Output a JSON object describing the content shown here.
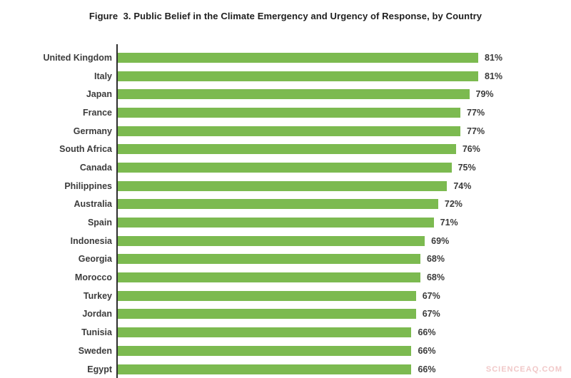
{
  "title": "Figure  3. Public Belief in the Climate Emergency and Urgency of Response, by Country",
  "watermark": "SCIENCEAQ.COM",
  "colors": {
    "bar": "#7cba50",
    "axis": "#2e2e2e",
    "title_text": "#1e1e1e",
    "label_text": "#3c3c3c",
    "watermark_text": "#f1c8c8"
  },
  "chart_data": {
    "type": "bar",
    "orientation": "horizontal",
    "title": "Figure  3. Public Belief in the Climate Emergency and Urgency of Response, by Country",
    "categories": [
      "United Kingdom",
      "Italy",
      "Japan",
      "France",
      "Germany",
      "South Africa",
      "Canada",
      "Philippines",
      "Australia",
      "Spain",
      "Indonesia",
      "Georgia",
      "Morocco",
      "Turkey",
      "Jordan",
      "Tunisia",
      "Sweden",
      "Egypt"
    ],
    "values": [
      81,
      81,
      79,
      77,
      77,
      76,
      75,
      74,
      72,
      71,
      69,
      68,
      68,
      67,
      67,
      66,
      66,
      66
    ],
    "value_suffix": "%",
    "xlabel": "",
    "ylabel": "",
    "xlim": [
      0,
      100
    ],
    "grid": false,
    "legend": false,
    "bar_color": "#7cba50",
    "value_labels": "right of bar ends"
  }
}
